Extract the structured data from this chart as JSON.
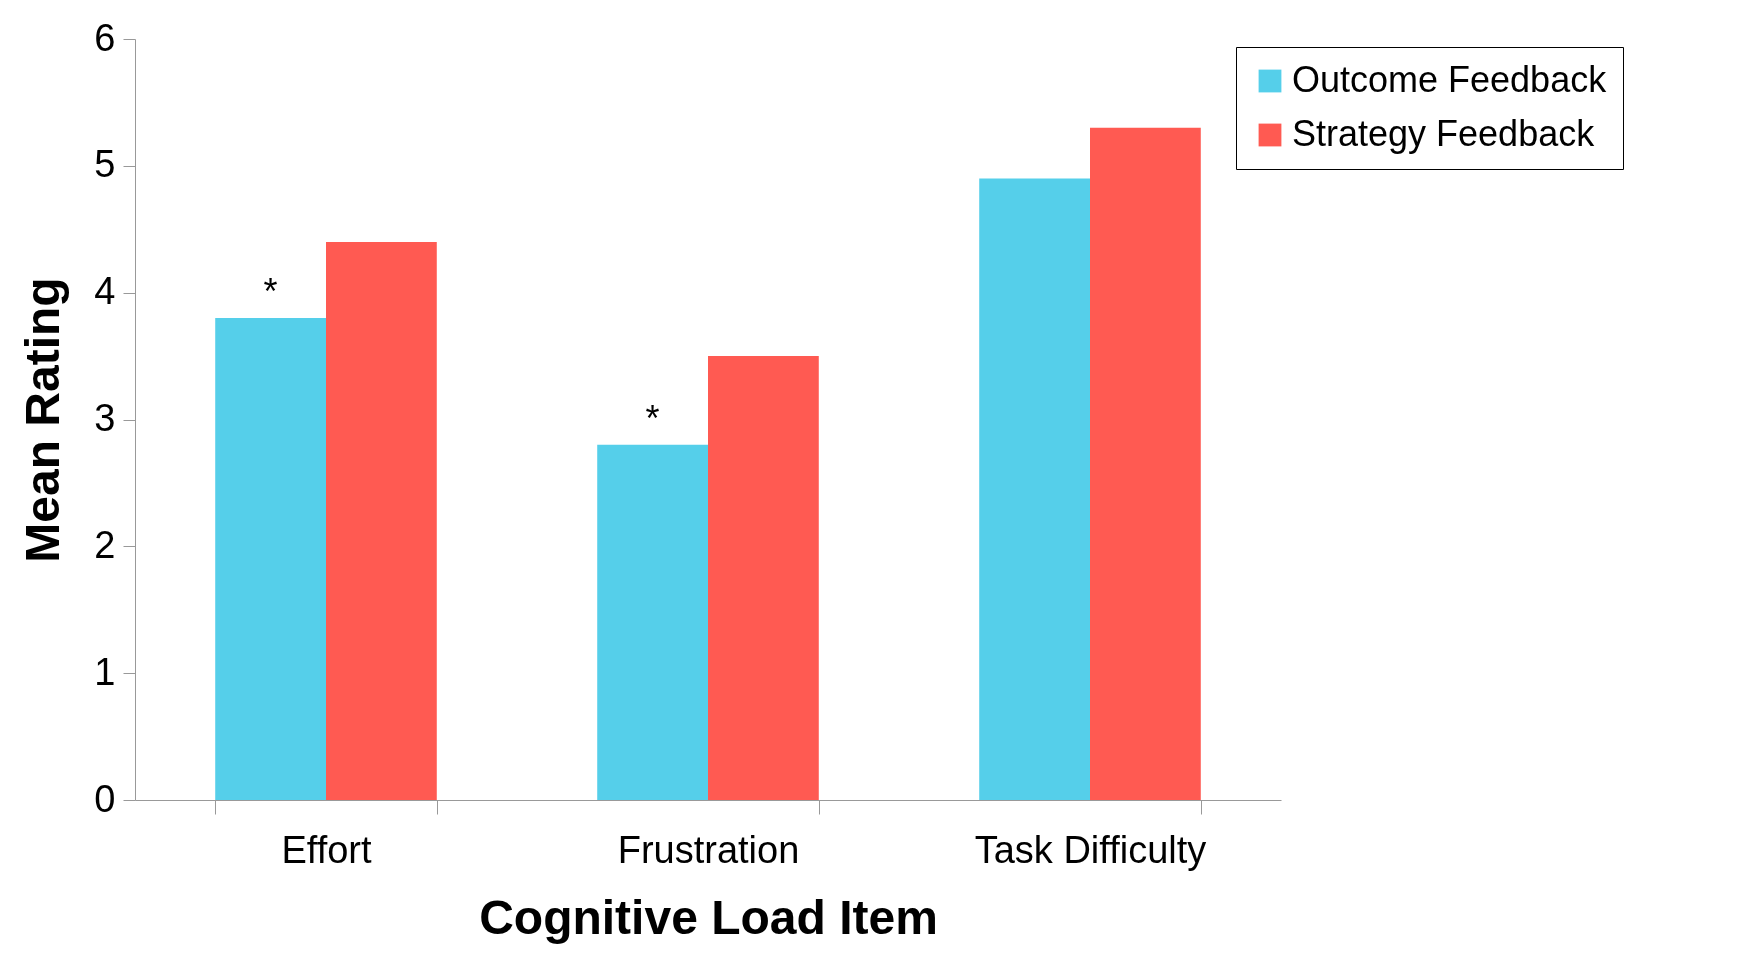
{
  "chart_data": {
    "type": "bar",
    "xlabel": "Cognitive Load Item",
    "ylabel": "Mean Rating",
    "categories": [
      "Effort",
      "Frustration",
      "Task Difficulty"
    ],
    "series": [
      {
        "name": "Outcome Feedback",
        "color": "#55cfea",
        "values": [
          3.8,
          2.8,
          4.9
        ]
      },
      {
        "name": "Strategy Feedback",
        "color": "#ff5a52",
        "values": [
          4.4,
          3.5,
          5.3
        ]
      }
    ],
    "ylim": [
      0,
      6
    ],
    "yticks": [
      0,
      1,
      2,
      3,
      4,
      5,
      6
    ],
    "grid": false,
    "legend": "top right",
    "annotations": [
      {
        "text": "*",
        "x": "Effort",
        "y": 3.8
      },
      {
        "text": "*",
        "x": "Frustration",
        "y": 2.8
      }
    ]
  }
}
